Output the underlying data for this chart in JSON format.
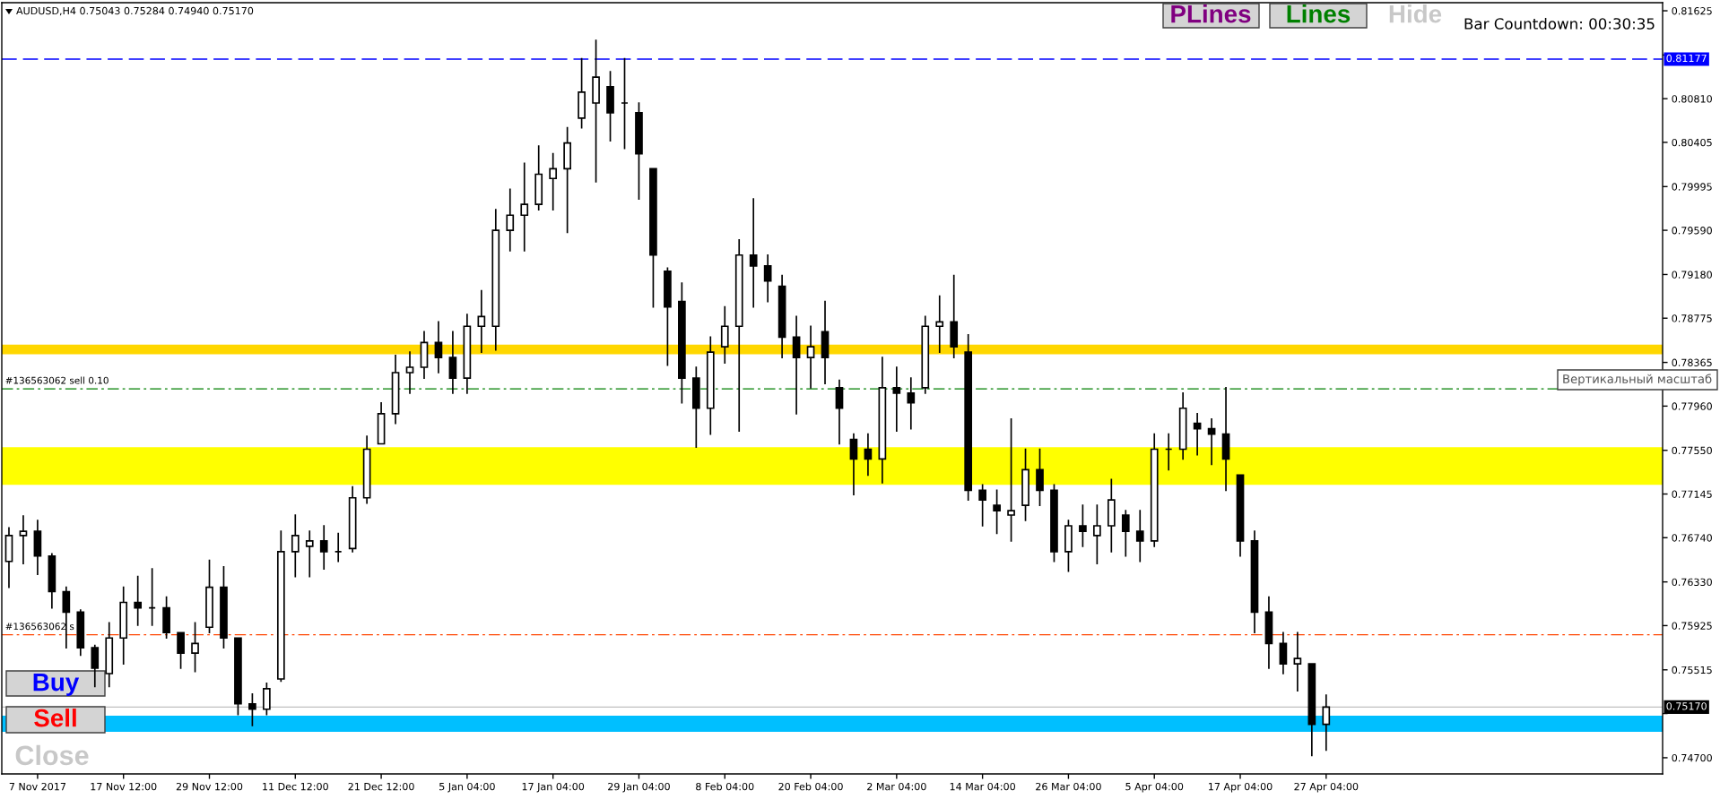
{
  "chart_data": {
    "type": "candlestick",
    "title": "AUDUSD,H4 0.75043 0.75284 0.74940 0.75170",
    "color": "#000000",
    "categories": [
      null,
      null,
      "7 Nov 2017",
      null,
      null,
      null,
      null,
      null,
      "17 Nov 12:00",
      null,
      null,
      null,
      null,
      null,
      "29 Nov 12:00",
      null,
      null,
      null,
      null,
      null,
      "11 Dec 12:00",
      null,
      null,
      null,
      null,
      null,
      "21 Dec 12:00",
      null,
      null,
      null,
      null,
      null,
      "5 Jan 04:00",
      null,
      null,
      null,
      null,
      null,
      "17 Jan 04:00",
      null,
      null,
      null,
      null,
      null,
      "29 Jan 04:00",
      null,
      null,
      null,
      null,
      null,
      "8 Feb 04:00",
      null,
      null,
      null,
      null,
      null,
      "20 Feb 04:00",
      null,
      null,
      null,
      null,
      null,
      "2 Mar 04:00",
      null,
      null,
      null,
      null,
      null,
      "14 Mar 04:00",
      null,
      null,
      null,
      null,
      null,
      "26 Mar 04:00",
      null,
      null,
      null,
      null,
      null,
      "5 Apr 04:00",
      null,
      null,
      null,
      null,
      null,
      "17 Apr 04:00",
      null,
      null,
      null,
      null,
      null,
      "27 Apr 04:00",
      null,
      null,
      null,
      null,
      null,
      null,
      null,
      null,
      null,
      null,
      null,
      null,
      null,
      null,
      null,
      null,
      null,
      null,
      null,
      null,
      null,
      null,
      null
    ],
    "ohlc": [
      [
        0.7652,
        0.7683,
        0.7628,
        0.7676
      ],
      [
        0.7676,
        0.7694,
        0.765,
        0.768
      ],
      [
        0.768,
        0.769,
        0.764,
        0.7657
      ],
      [
        0.7657,
        0.7659,
        0.7609,
        0.7624
      ],
      [
        0.7624,
        0.7628,
        0.7572,
        0.7605
      ],
      [
        0.7605,
        0.7607,
        0.7565,
        0.7572
      ],
      [
        0.7572,
        0.7574,
        0.7536,
        0.7553
      ],
      [
        0.7548,
        0.7595,
        0.7536,
        0.7581
      ],
      [
        0.7581,
        0.7628,
        0.7557,
        0.7614
      ],
      [
        0.7614,
        0.7638,
        0.7593,
        0.7609
      ],
      [
        0.7609,
        0.7645,
        0.7593,
        0.7609
      ],
      [
        0.7609,
        0.7619,
        0.7581,
        0.7586
      ],
      [
        0.7586,
        0.7586,
        0.7553,
        0.7567
      ],
      [
        0.7567,
        0.7595,
        0.755,
        0.7576
      ],
      [
        0.7591,
        0.7653,
        0.7586,
        0.7628
      ],
      [
        0.7628,
        0.7647,
        0.7572,
        0.7581
      ],
      [
        0.7581,
        0.7581,
        0.751,
        0.752
      ],
      [
        0.752,
        0.7529,
        0.75,
        0.7515
      ],
      [
        0.7515,
        0.7539,
        0.751,
        0.7534
      ],
      [
        0.7543,
        0.768,
        0.7541,
        0.7661
      ],
      [
        0.7661,
        0.7695,
        0.7638,
        0.7676
      ],
      [
        0.7666,
        0.768,
        0.7638,
        0.7671
      ],
      [
        0.7671,
        0.7685,
        0.7645,
        0.7661
      ],
      [
        0.7661,
        0.7678,
        0.7652,
        0.7661
      ],
      [
        0.7664,
        0.7721,
        0.7661,
        0.7711
      ],
      [
        0.7711,
        0.7768,
        0.7706,
        0.7756
      ],
      [
        0.7761,
        0.7799,
        0.7761,
        0.7789
      ],
      [
        0.7789,
        0.7843,
        0.778,
        0.7827
      ],
      [
        0.7827,
        0.7846,
        0.7808,
        0.7832
      ],
      [
        0.7832,
        0.7865,
        0.7822,
        0.7855
      ],
      [
        0.7855,
        0.7874,
        0.7827,
        0.7841
      ],
      [
        0.7841,
        0.7865,
        0.7808,
        0.7822
      ],
      [
        0.7822,
        0.7881,
        0.7808,
        0.787
      ],
      [
        0.787,
        0.7903,
        0.7846,
        0.7879
      ],
      [
        0.787,
        0.7978,
        0.7848,
        0.7959
      ],
      [
        0.7959,
        0.7997,
        0.794,
        0.7973
      ],
      [
        0.7973,
        0.8021,
        0.794,
        0.7983
      ],
      [
        0.7983,
        0.8037,
        0.7978,
        0.8011
      ],
      [
        0.8007,
        0.803,
        0.7978,
        0.8016
      ],
      [
        0.8016,
        0.8054,
        0.7957,
        0.804
      ],
      [
        0.8063,
        0.8118,
        0.8054,
        0.8087
      ],
      [
        0.8077,
        0.8135,
        0.8004,
        0.8101
      ],
      [
        0.8092,
        0.8106,
        0.8042,
        0.8068
      ],
      [
        0.8077,
        0.8118,
        0.8035,
        0.8077
      ],
      [
        0.8068,
        0.8077,
        0.7988,
        0.803
      ],
      [
        0.8016,
        0.8016,
        0.7888,
        0.7936
      ],
      [
        0.7921,
        0.7924,
        0.7834,
        0.7888
      ],
      [
        0.7893,
        0.791,
        0.7799,
        0.7822
      ],
      [
        0.7822,
        0.7832,
        0.7758,
        0.7794
      ],
      [
        0.7794,
        0.786,
        0.777,
        0.7846
      ],
      [
        0.7851,
        0.7888,
        0.7836,
        0.787
      ],
      [
        0.787,
        0.795,
        0.7773,
        0.7936
      ],
      [
        0.7936,
        0.7988,
        0.7888,
        0.7926
      ],
      [
        0.7926,
        0.7936,
        0.7893,
        0.7912
      ],
      [
        0.7907,
        0.7917,
        0.7841,
        0.786
      ],
      [
        0.786,
        0.7879,
        0.7789,
        0.7841
      ],
      [
        0.7841,
        0.787,
        0.7813,
        0.7851
      ],
      [
        0.7865,
        0.7893,
        0.7817,
        0.7841
      ],
      [
        0.7813,
        0.782,
        0.7761,
        0.7794
      ],
      [
        0.7765,
        0.777,
        0.7714,
        0.7747
      ],
      [
        0.7756,
        0.777,
        0.7732,
        0.7747
      ],
      [
        0.7747,
        0.7841,
        0.7725,
        0.7813
      ],
      [
        0.7813,
        0.7832,
        0.7773,
        0.7808
      ],
      [
        0.7808,
        0.7822,
        0.7775,
        0.7799
      ],
      [
        0.7813,
        0.7879,
        0.7808,
        0.787
      ],
      [
        0.787,
        0.7898,
        0.7846,
        0.7874
      ],
      [
        0.7874,
        0.7917,
        0.7841,
        0.7851
      ],
      [
        0.7846,
        0.7862,
        0.7709,
        0.7718
      ],
      [
        0.7718,
        0.7723,
        0.7685,
        0.7709
      ],
      [
        0.7704,
        0.7718,
        0.7678,
        0.7699
      ],
      [
        0.7695,
        0.7784,
        0.7671,
        0.7699
      ],
      [
        0.7704,
        0.7756,
        0.769,
        0.7737
      ],
      [
        0.7737,
        0.7756,
        0.7704,
        0.7718
      ],
      [
        0.7718,
        0.7723,
        0.7652,
        0.7661
      ],
      [
        0.7661,
        0.769,
        0.7643,
        0.7685
      ],
      [
        0.7685,
        0.7704,
        0.7666,
        0.768
      ],
      [
        0.7676,
        0.7704,
        0.765,
        0.7685
      ],
      [
        0.7685,
        0.7728,
        0.7661,
        0.7709
      ],
      [
        0.7695,
        0.7699,
        0.7657,
        0.768
      ],
      [
        0.768,
        0.7699,
        0.7652,
        0.7671
      ],
      [
        0.7671,
        0.777,
        0.7666,
        0.7756
      ],
      [
        0.7756,
        0.777,
        0.7737,
        0.7756
      ],
      [
        0.7756,
        0.7808,
        0.7747,
        0.7794
      ],
      [
        0.778,
        0.7789,
        0.7751,
        0.7775
      ],
      [
        0.7775,
        0.7784,
        0.7742,
        0.777
      ],
      [
        0.777,
        0.7813,
        0.7718,
        0.7747
      ],
      [
        0.7732,
        0.7732,
        0.7657,
        0.7671
      ],
      [
        0.7671,
        0.768,
        0.7586,
        0.7605
      ],
      [
        0.7605,
        0.7619,
        0.7553,
        0.7576
      ],
      [
        0.7576,
        0.7586,
        0.7548,
        0.7557
      ],
      [
        0.7557,
        0.7586,
        0.7532,
        0.7562
      ],
      [
        0.7557,
        0.7557,
        0.7472,
        0.7501
      ],
      [
        0.7501,
        0.7528,
        0.7477,
        0.7517
      ],
      null,
      null,
      null,
      null,
      null,
      null,
      null,
      null,
      null,
      null,
      null,
      null,
      null,
      null,
      null,
      null,
      null,
      null,
      null,
      null,
      null,
      null,
      null
    ],
    "ylim": [
      0.7455,
      0.817
    ],
    "yticks": [
      0.81625,
      {
        "value": 0.81215,
        "label": null
      },
      {
        "value": 0.8081,
        "label": "0.80810"
      },
      0.80405,
      0.79995,
      {
        "value": 0.7959,
        "label": "0.79590"
      },
      {
        "value": 0.7918,
        "label": "0.79180"
      },
      0.78775,
      0.78365,
      {
        "value": 0.7796,
        "label": "0.77960"
      },
      {
        "value": 0.7755,
        "label": "0.77550"
      },
      0.77145,
      {
        "value": 0.7674,
        "label": "0.76740"
      },
      {
        "value": 0.7633,
        "label": "0.76330"
      },
      0.75925,
      0.75515,
      {
        "value": 0.7511,
        "label": null
      },
      {
        "value": 0.747,
        "label": "0.74700"
      }
    ],
    "grid": false,
    "bands": [
      {
        "axis": "y",
        "from": 0.7723,
        "to": 0.7758,
        "color": "#ffff00"
      },
      {
        "axis": "y",
        "from": 0.7844,
        "to": 0.7853,
        "color": "#ffd700"
      },
      {
        "axis": "y",
        "from": 0.7494,
        "to": 0.7509,
        "color": "#00bfff"
      }
    ],
    "ref_lines": [
      {
        "axis": "y",
        "value": 0.81177,
        "label": "0.81177",
        "color": "#0000ff",
        "line_style": "dashed"
      },
      {
        "axis": "y",
        "value": 0.7812,
        "label": "#136563062 sell 0.10",
        "color": "#008000",
        "line_style": "dashdot"
      },
      {
        "axis": "y",
        "value": 0.7584,
        "label": "#136563062 s",
        "color": "#ff4500",
        "line_style": "dashdot"
      },
      {
        "axis": "y",
        "value": 0.7517,
        "label": "0.75170",
        "color": "#c0c0c0",
        "line_style": "solid"
      }
    ],
    "annotations": [
      "PLines",
      "Lines",
      "Hide",
      "Bar Countdown: 00:30:35",
      "Buy",
      "Sell",
      "Close",
      "Вертикальный масштаб"
    ]
  }
}
